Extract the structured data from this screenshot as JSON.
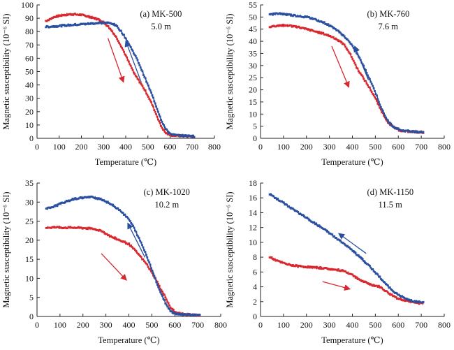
{
  "colors": {
    "heating": "#d7282f",
    "cooling": "#2a4f9f",
    "axis": "#222222"
  },
  "chart_data": [
    {
      "type": "line",
      "panel_label": "(a) MK-500",
      "depth_label": "5.0 m",
      "xlabel": "Temperature (℃)",
      "ylabel": "Magnetic susceptibility (10⁻⁶ SI)",
      "xlim": [
        0,
        800
      ],
      "ylim": [
        0,
        100
      ],
      "xticks": [
        0,
        100,
        200,
        300,
        400,
        500,
        600,
        700,
        800
      ],
      "yticks": [
        0,
        10,
        20,
        30,
        40,
        50,
        60,
        70,
        80,
        90,
        100
      ],
      "series": [
        {
          "role": "heating",
          "color": "#d7282f",
          "x": [
            40,
            80,
            120,
            160,
            200,
            240,
            280,
            300,
            320,
            340,
            360,
            380,
            400,
            420,
            440,
            460,
            480,
            500,
            520,
            540,
            560,
            580,
            600,
            620,
            650,
            680,
            710
          ],
          "y": [
            88,
            91,
            92.5,
            93,
            92.5,
            91,
            89,
            87,
            84,
            80,
            75,
            69,
            62,
            55,
            48,
            43,
            38,
            32,
            25,
            17,
            9,
            4,
            2.5,
            2,
            1.8,
            1.6,
            1.5
          ]
        },
        {
          "role": "cooling",
          "color": "#2a4f9f",
          "x": [
            40,
            80,
            120,
            160,
            200,
            240,
            280,
            320,
            340,
            360,
            380,
            400,
            420,
            440,
            460,
            480,
            500,
            520,
            540,
            560,
            580,
            600,
            620,
            650,
            680,
            710
          ],
          "y": [
            83.5,
            84,
            84.5,
            85,
            85.5,
            86,
            86.5,
            86.5,
            86,
            84,
            80,
            75,
            69,
            63,
            56,
            48,
            40,
            32,
            23,
            14,
            7,
            3.5,
            2.5,
            2,
            1.8,
            1.6
          ]
        }
      ],
      "arrows": [
        {
          "role": "heating",
          "from": [
            320,
            75
          ],
          "to": [
            390,
            42
          ]
        },
        {
          "role": "cooling",
          "from": [
            470,
            42
          ],
          "to": [
            400,
            73
          ]
        }
      ]
    },
    {
      "type": "line",
      "panel_label": "(b) MK-760",
      "depth_label": "7.6 m",
      "xlabel": "Temperature (℃)",
      "ylabel": "Magnetic susceptibility (10⁻⁶ SI)",
      "xlim": [
        0,
        800
      ],
      "ylim": [
        0,
        55
      ],
      "xticks": [
        0,
        100,
        200,
        300,
        400,
        500,
        600,
        700,
        800
      ],
      "yticks": [
        0,
        5,
        10,
        15,
        20,
        25,
        30,
        35,
        40,
        45,
        50,
        55
      ],
      "series": [
        {
          "role": "heating",
          "color": "#d7282f",
          "x": [
            40,
            80,
            120,
            160,
            200,
            240,
            280,
            320,
            360,
            380,
            400,
            420,
            440,
            460,
            480,
            500,
            520,
            540,
            560,
            580,
            600,
            620,
            650,
            680,
            710
          ],
          "y": [
            46,
            46.5,
            46.5,
            46,
            45,
            44,
            43,
            41.5,
            39,
            36.5,
            33,
            29,
            26,
            23,
            20,
            16.5,
            12.5,
            9,
            6,
            4.5,
            3.5,
            3,
            2.8,
            2.6,
            2.5
          ]
        },
        {
          "role": "cooling",
          "color": "#2a4f9f",
          "x": [
            40,
            80,
            120,
            160,
            200,
            240,
            280,
            320,
            360,
            380,
            400,
            420,
            440,
            460,
            480,
            500,
            520,
            540,
            560,
            580,
            600,
            620,
            650,
            680,
            710
          ],
          "y": [
            51,
            51.5,
            51,
            50.5,
            50,
            49,
            47.5,
            45.5,
            42.5,
            40.5,
            38,
            35,
            31.5,
            27.5,
            23.5,
            19,
            14,
            9.5,
            6.5,
            4.8,
            3.8,
            3.2,
            2.9,
            2.7,
            2.6
          ]
        }
      ],
      "arrows": [
        {
          "role": "heating",
          "from": [
            310,
            38
          ],
          "to": [
            385,
            21
          ]
        },
        {
          "role": "cooling",
          "from": [
            470,
            24
          ],
          "to": [
            410,
            38
          ]
        }
      ]
    },
    {
      "type": "line",
      "panel_label": "(c) MK-1020",
      "depth_label": "10.2 m",
      "xlabel": "Temperature (℃)",
      "ylabel": "Magnetic susceptibility (10⁻⁶ SI)",
      "xlim": [
        0,
        800
      ],
      "ylim": [
        0,
        35
      ],
      "xticks": [
        0,
        100,
        200,
        300,
        400,
        500,
        600,
        700,
        800
      ],
      "yticks": [
        0,
        5,
        10,
        15,
        20,
        25,
        30,
        35
      ],
      "series": [
        {
          "role": "heating",
          "color": "#d7282f",
          "x": [
            40,
            80,
            120,
            160,
            200,
            240,
            280,
            320,
            360,
            400,
            440,
            480,
            500,
            520,
            540,
            560,
            580,
            600,
            620,
            650,
            680,
            710
          ],
          "y": [
            23.3,
            23.4,
            23.3,
            23.3,
            23.2,
            23,
            22.5,
            21,
            20,
            19,
            16.5,
            13.5,
            11.5,
            9.5,
            7,
            5,
            2.5,
            1.2,
            0.8,
            0.5,
            0.4,
            0.3
          ]
        },
        {
          "role": "cooling",
          "color": "#2a4f9f",
          "x": [
            40,
            80,
            120,
            160,
            200,
            240,
            280,
            320,
            360,
            400,
            420,
            440,
            460,
            480,
            500,
            520,
            540,
            560,
            580,
            600,
            620,
            650,
            680,
            710
          ],
          "y": [
            28.2,
            29,
            30,
            30.8,
            31.2,
            31.3,
            30.8,
            29.5,
            28,
            25.5,
            23.5,
            21,
            18.5,
            15.5,
            12.5,
            9,
            6,
            3.5,
            1.5,
            0.8,
            0.6,
            0.5,
            0.4,
            0.4
          ]
        }
      ],
      "arrows": [
        {
          "role": "heating",
          "from": [
            280,
            16.5
          ],
          "to": [
            390,
            9.5
          ]
        },
        {
          "role": "cooling",
          "from": [
            470,
            15.5
          ],
          "to": [
            395,
            24.5
          ]
        }
      ]
    },
    {
      "type": "line",
      "panel_label": "(d) MK-1150",
      "depth_label": "11.5 m",
      "xlabel": "Temperature (℃)",
      "ylabel": "Magnetic susceptibility (10⁻⁶ SI)",
      "xlim": [
        0,
        800
      ],
      "ylim": [
        0,
        18
      ],
      "xticks": [
        0,
        100,
        200,
        300,
        400,
        500,
        600,
        700,
        800
      ],
      "yticks": [
        0,
        2,
        4,
        6,
        8,
        10,
        12,
        14,
        16,
        18
      ],
      "series": [
        {
          "role": "heating",
          "color": "#d7282f",
          "x": [
            40,
            80,
            120,
            160,
            200,
            240,
            280,
            320,
            360,
            400,
            440,
            480,
            520,
            560,
            600,
            640,
            680,
            710
          ],
          "y": [
            8,
            7.4,
            7,
            6.8,
            6.7,
            6.6,
            6.5,
            6.3,
            6.2,
            5.6,
            4.8,
            4.3,
            4,
            3.1,
            2.4,
            2.1,
            1.8,
            1.8
          ]
        },
        {
          "role": "cooling",
          "color": "#2a4f9f",
          "x": [
            40,
            80,
            120,
            160,
            200,
            240,
            280,
            320,
            360,
            400,
            440,
            480,
            520,
            560,
            600,
            640,
            680,
            710
          ],
          "y": [
            16.5,
            15.7,
            14.9,
            14.1,
            13.3,
            12.5,
            11.7,
            10.8,
            9.9,
            8.9,
            7.8,
            6.6,
            5.3,
            3.9,
            2.9,
            2.3,
            2,
            1.9
          ]
        }
      ],
      "arrows": [
        {
          "role": "heating",
          "from": [
            270,
            4.7
          ],
          "to": [
            390,
            3.7
          ]
        },
        {
          "role": "cooling",
          "from": [
            460,
            8.5
          ],
          "to": [
            340,
            11.2
          ]
        }
      ]
    }
  ]
}
